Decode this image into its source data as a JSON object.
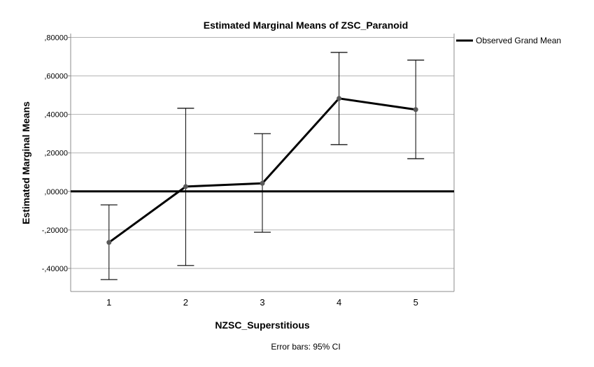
{
  "chart_data": {
    "type": "line",
    "title": "Estimated Marginal Means of ZSC_Paranoid",
    "xlabel": "NZSC_Superstitious",
    "ylabel": "Estimated Marginal Means",
    "categories": [
      "1",
      "2",
      "3",
      "4",
      "5"
    ],
    "series": [
      {
        "name": "Estimated Marginal Means",
        "values": [
          -0.265,
          0.025,
          0.042,
          0.483,
          0.425
        ],
        "ci_lower": [
          -0.458,
          -0.385,
          -0.212,
          0.243,
          0.17
        ],
        "ci_upper": [
          -0.07,
          0.432,
          0.3,
          0.722,
          0.682
        ]
      }
    ],
    "reference_line": {
      "name": "Observed Grand Mean",
      "value": 0.0
    },
    "ylim": [
      -0.52,
      0.82
    ],
    "yticks": [
      -0.4,
      -0.2,
      0.0,
      0.2,
      0.4,
      0.6,
      0.8
    ],
    "ytick_labels": [
      "-,40000",
      "-,20000",
      ",00000",
      ",20000",
      ",40000",
      ",60000",
      ",80000"
    ],
    "grid": true,
    "legend": {
      "position": "top-right",
      "entries": [
        "Observed Grand Mean"
      ]
    },
    "footnote": "Error bars: 95% CI",
    "colors": {
      "line": "#000000",
      "marker": "#595959",
      "grid": "#b3b3b3",
      "frame": "#8c8c8c"
    }
  }
}
